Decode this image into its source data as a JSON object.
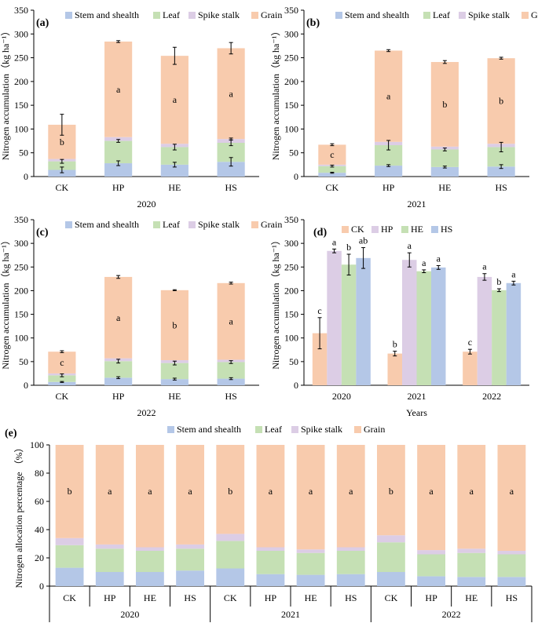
{
  "colors": {
    "stem": "#B4C7E7",
    "leaf": "#C5E0B4",
    "spike": "#DCCDE5",
    "grain": "#F8CBAD",
    "CK": "#F8CBAD",
    "HP": "#DCCDE5",
    "HE": "#C5E0B4",
    "HS": "#B4C7E7",
    "axis": "#000000"
  },
  "chart_data": [
    {
      "panel": "a",
      "label": "(a)",
      "type": "bar",
      "stacked": true,
      "ylabel": "Nitrogen accumulation（kg ha⁻¹）",
      "xlabel": "2020",
      "ylim": [
        0,
        350
      ],
      "yticks": [
        "0",
        "50",
        "100",
        "150",
        "200",
        "250",
        "300",
        "350"
      ],
      "categories": [
        "CK",
        "HP",
        "HE",
        "HS"
      ],
      "legend": [
        "Stem and shealth",
        "Leaf",
        "Spike stalk",
        "Grain"
      ],
      "series": [
        {
          "name": "Stem and shealth",
          "color_key": "stem",
          "values": [
            14,
            28,
            25,
            31
          ],
          "errors": [
            6,
            5,
            5,
            9
          ]
        },
        {
          "name": "Leaf",
          "color_key": "leaf",
          "values": [
            18,
            47,
            37,
            40
          ],
          "errors": [
            4,
            3,
            6,
            6
          ]
        },
        {
          "name": "Spike stalk",
          "color_key": "spike",
          "values": [
            5,
            8,
            7,
            8
          ],
          "errors": [
            0,
            0,
            0,
            2
          ]
        },
        {
          "name": "Grain",
          "color_key": "grain",
          "values": [
            72,
            201,
            185,
            191
          ],
          "errors": [
            22,
            2,
            18,
            12
          ]
        }
      ],
      "letters": [
        "b",
        "a",
        "a",
        "a"
      ]
    },
    {
      "panel": "b",
      "label": "(b)",
      "type": "bar",
      "stacked": true,
      "ylabel": "Nitrogen accumulation（kg ha⁻¹）",
      "xlabel": "2021",
      "ylim": [
        0,
        350
      ],
      "yticks": [
        "0",
        "50",
        "100",
        "150",
        "200",
        "250",
        "300",
        "350"
      ],
      "categories": [
        "CK",
        "HP",
        "HE",
        "HS"
      ],
      "legend": [
        "Stem and shealth",
        "Leaf",
        "Spike stalk",
        "Grain"
      ],
      "series": [
        {
          "name": "Stem and shealth",
          "color_key": "stem",
          "values": [
            8,
            23,
            20,
            21
          ],
          "errors": [
            1,
            2,
            2,
            4
          ]
        },
        {
          "name": "Leaf",
          "color_key": "leaf",
          "values": [
            14,
            43,
            37,
            41
          ],
          "errors": [
            2,
            10,
            3,
            10
          ]
        },
        {
          "name": "Spike stalk",
          "color_key": "spike",
          "values": [
            3,
            7,
            6,
            7
          ],
          "errors": [
            0,
            0,
            0,
            0
          ]
        },
        {
          "name": "Grain",
          "color_key": "grain",
          "values": [
            42,
            192,
            178,
            180
          ],
          "errors": [
            2,
            2,
            3,
            2
          ]
        }
      ],
      "letters": [
        "c",
        "a",
        "b",
        "b"
      ]
    },
    {
      "panel": "c",
      "label": "(c)",
      "type": "bar",
      "stacked": true,
      "ylabel": "Nitrogen accumulation（kg ha⁻¹）",
      "xlabel": "2022",
      "ylim": [
        0,
        350
      ],
      "yticks": [
        "0",
        "50",
        "100",
        "150",
        "200",
        "250",
        "300",
        "350"
      ],
      "categories": [
        "CK",
        "HP",
        "HE",
        "HS"
      ],
      "legend": [
        "Stem and shealth",
        "Leaf",
        "Spike stalk",
        "Grain"
      ],
      "series": [
        {
          "name": "Stem and shealth",
          "color_key": "stem",
          "values": [
            7,
            16,
            13,
            14
          ],
          "errors": [
            1,
            2,
            2,
            2
          ]
        },
        {
          "name": "Leaf",
          "color_key": "leaf",
          "values": [
            14,
            35,
            34,
            35
          ],
          "errors": [
            3,
            4,
            4,
            3
          ]
        },
        {
          "name": "Spike stalk",
          "color_key": "spike",
          "values": [
            4,
            6,
            6,
            5
          ],
          "errors": [
            0,
            0,
            0,
            0
          ]
        },
        {
          "name": "Grain",
          "color_key": "grain",
          "values": [
            46,
            172,
            148,
            162
          ],
          "errors": [
            2,
            3,
            1,
            2
          ]
        }
      ],
      "letters": [
        "c",
        "a",
        "b",
        "a"
      ]
    },
    {
      "panel": "d",
      "label": "(d)",
      "type": "bar",
      "stacked": false,
      "ylabel": "Nitrogen accumulation（kg ha⁻¹）",
      "xlabel": "Years",
      "ylim": [
        0,
        350
      ],
      "yticks": [
        "0",
        "50",
        "100",
        "150",
        "200",
        "250",
        "300",
        "350"
      ],
      "categories": [
        "2020",
        "2021",
        "2022"
      ],
      "legend": [
        "CK",
        "HP",
        "HE",
        "HS"
      ],
      "series": [
        {
          "name": "CK",
          "color_key": "CK",
          "values": [
            110,
            67,
            71
          ],
          "errors": [
            33,
            5,
            5
          ],
          "letters": [
            "c",
            "b",
            "c"
          ]
        },
        {
          "name": "HP",
          "color_key": "HP",
          "values": [
            284,
            265,
            229
          ],
          "errors": [
            4,
            15,
            7
          ],
          "letters": [
            "a",
            "a",
            "a"
          ]
        },
        {
          "name": "HE",
          "color_key": "HE",
          "values": [
            255,
            241,
            201
          ],
          "errors": [
            22,
            3,
            3
          ],
          "letters": [
            "b",
            "a",
            "b"
          ]
        },
        {
          "name": "HS",
          "color_key": "HS",
          "values": [
            269,
            249,
            216
          ],
          "errors": [
            22,
            4,
            4
          ],
          "letters": [
            "ab",
            "a",
            "a"
          ]
        }
      ]
    },
    {
      "panel": "e",
      "label": "(e)",
      "type": "bar",
      "stacked": true,
      "ylabel": "Nitrogen allocation percentage （%）",
      "ylim": [
        0,
        100
      ],
      "yticks": [
        "0",
        "20",
        "40",
        "60",
        "80",
        "100"
      ],
      "categories": [
        "CK",
        "HP",
        "HE",
        "HS",
        "CK",
        "HP",
        "HE",
        "HS",
        "CK",
        "HP",
        "HE",
        "HS"
      ],
      "groups": [
        "2020",
        "2021",
        "2022"
      ],
      "legend": [
        "Stem and shealth",
        "Leaf",
        "Spike stalk",
        "Grain"
      ],
      "series": [
        {
          "name": "Stem and shealth",
          "color_key": "stem",
          "values": [
            13,
            10,
            10,
            11,
            12.5,
            8.5,
            8,
            8.5,
            10,
            7,
            6.5,
            6.5
          ]
        },
        {
          "name": "Leaf",
          "color_key": "leaf",
          "values": [
            16,
            16.5,
            15,
            15.5,
            19.5,
            16.5,
            15.5,
            16.5,
            21,
            15.5,
            17,
            16
          ]
        },
        {
          "name": "Spike stalk",
          "color_key": "spike",
          "values": [
            5,
            3,
            2.5,
            3,
            5,
            2.5,
            2.5,
            2.5,
            5,
            3,
            3,
            2.5
          ]
        },
        {
          "name": "Grain",
          "color_key": "grain",
          "values": [
            66,
            70.5,
            72.5,
            70.5,
            63,
            72.5,
            74,
            72.5,
            64,
            74.5,
            73.5,
            75
          ]
        }
      ],
      "letters": [
        "b",
        "a",
        "a",
        "a",
        "b",
        "a",
        "a",
        "a",
        "b",
        "a",
        "a",
        "a"
      ]
    }
  ]
}
